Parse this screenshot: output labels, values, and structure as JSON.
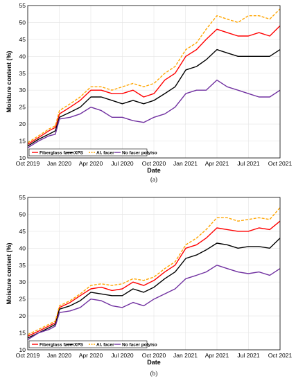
{
  "chart_data": [
    {
      "type": "line",
      "caption": "(a)",
      "xlabel": "Date",
      "ylabel": "Moisture content (%)",
      "ylim": [
        10,
        55
      ],
      "yticks": [
        10,
        15,
        20,
        25,
        30,
        35,
        40,
        45,
        50,
        55
      ],
      "xlim": [
        "2019-10-01",
        "2021-10-01"
      ],
      "xticks": [
        "Oct 2019",
        "Jan 2020",
        "Apr 2020",
        "Jul 2020",
        "Oct 2020",
        "Jan 2021",
        "Apr 2021",
        "Jul 2021",
        "Oct 2021"
      ],
      "grid": true,
      "legend_position": "bottom-left",
      "x": [
        "2019-10-01",
        "2019-11-01",
        "2019-12-01",
        "2019-12-20",
        "2020-01-01",
        "2020-02-01",
        "2020-03-01",
        "2020-04-01",
        "2020-05-01",
        "2020-06-01",
        "2020-07-01",
        "2020-08-01",
        "2020-09-01",
        "2020-10-01",
        "2020-11-01",
        "2020-12-01",
        "2021-01-01",
        "2021-02-01",
        "2021-03-01",
        "2021-04-01",
        "2021-05-01",
        "2021-06-01",
        "2021-07-01",
        "2021-08-01",
        "2021-09-01",
        "2021-10-01"
      ],
      "series": [
        {
          "name": "Fiberglass facer",
          "color": "#ff0000",
          "dash": "solid",
          "values": [
            14,
            16,
            18,
            19,
            23,
            25,
            27,
            30,
            30,
            29,
            29,
            30,
            28,
            29,
            33,
            35,
            40,
            42,
            45,
            48,
            47,
            46,
            46,
            47,
            46,
            49
          ]
        },
        {
          "name": "XPS",
          "color": "#000000",
          "dash": "solid",
          "values": [
            13.5,
            15.5,
            17,
            18,
            22,
            23.5,
            25,
            28,
            28,
            27,
            26,
            27,
            26,
            27,
            29,
            31,
            36,
            37,
            39,
            42,
            41,
            40,
            40,
            40,
            40,
            42
          ]
        },
        {
          "name": "Al. facer",
          "color": "#ffa500",
          "dash": "dashed",
          "values": [
            14.5,
            16.5,
            18.5,
            19.5,
            24,
            26,
            28,
            31,
            31,
            30,
            31,
            32,
            31,
            32,
            35,
            37,
            42,
            44,
            48,
            52,
            51,
            50,
            52,
            52,
            51,
            54
          ]
        },
        {
          "name": "No facer polyiso",
          "color": "#7030a0",
          "dash": "solid",
          "values": [
            13,
            15,
            16.5,
            17,
            21.5,
            22,
            23,
            25,
            24,
            22,
            22,
            21,
            20.5,
            22,
            23,
            25,
            29,
            30,
            30,
            33,
            31,
            30,
            29,
            28,
            28,
            30
          ]
        }
      ]
    },
    {
      "type": "line",
      "caption": "(b)",
      "xlabel": "Date",
      "ylabel": "Moisture content (%)",
      "ylim": [
        10,
        55
      ],
      "yticks": [
        10,
        15,
        20,
        25,
        30,
        35,
        40,
        45,
        50,
        55
      ],
      "xlim": [
        "2019-10-01",
        "2021-10-01"
      ],
      "xticks": [
        "Oct 2019",
        "Jan 2020",
        "Apr 2020",
        "Jul 2020",
        "Oct 2020",
        "Jan 2021",
        "Apr 2021",
        "Jul 2021",
        "Oct 2021"
      ],
      "grid": true,
      "legend_position": "bottom-left",
      "x": [
        "2019-10-01",
        "2019-11-01",
        "2019-12-01",
        "2019-12-20",
        "2020-01-01",
        "2020-02-01",
        "2020-03-01",
        "2020-04-01",
        "2020-05-01",
        "2020-06-01",
        "2020-07-01",
        "2020-08-01",
        "2020-09-01",
        "2020-10-01",
        "2020-11-01",
        "2020-12-01",
        "2021-01-01",
        "2021-02-01",
        "2021-03-01",
        "2021-04-01",
        "2021-05-01",
        "2021-06-01",
        "2021-07-01",
        "2021-08-01",
        "2021-09-01",
        "2021-10-01"
      ],
      "series": [
        {
          "name": "Fiberglass facer",
          "color": "#ff0000",
          "dash": "solid",
          "values": [
            14,
            15.5,
            17,
            18,
            22.5,
            24,
            26,
            28,
            28.5,
            27.5,
            28,
            30,
            29,
            30.5,
            33,
            35,
            40,
            41,
            43,
            46,
            45.5,
            45,
            45,
            46,
            45.5,
            48
          ]
        },
        {
          "name": "XPS",
          "color": "#000000",
          "dash": "solid",
          "values": [
            13.5,
            15,
            16.5,
            17.5,
            22,
            23,
            24.5,
            27,
            26.5,
            26,
            26,
            28,
            27,
            28.5,
            31,
            33,
            37,
            38,
            39.5,
            41.5,
            41,
            40,
            40.5,
            40.5,
            40,
            43
          ]
        },
        {
          "name": "Al. facer",
          "color": "#ffa500",
          "dash": "dashed",
          "values": [
            14.5,
            16,
            17.5,
            18.5,
            23,
            24.5,
            26.5,
            29,
            29.5,
            29,
            29.5,
            31,
            30.5,
            31.5,
            34,
            36,
            41,
            43,
            45.5,
            49,
            49,
            48,
            48.5,
            49,
            48.5,
            52
          ]
        },
        {
          "name": "No facer polyiso",
          "color": "#7030a0",
          "dash": "solid",
          "values": [
            13,
            15,
            16,
            17,
            21,
            21.5,
            22.5,
            25,
            24.5,
            23,
            22.5,
            24,
            23,
            25,
            26.5,
            28,
            31,
            32,
            33,
            35,
            34,
            33,
            32.5,
            33,
            32,
            34
          ]
        }
      ]
    }
  ]
}
